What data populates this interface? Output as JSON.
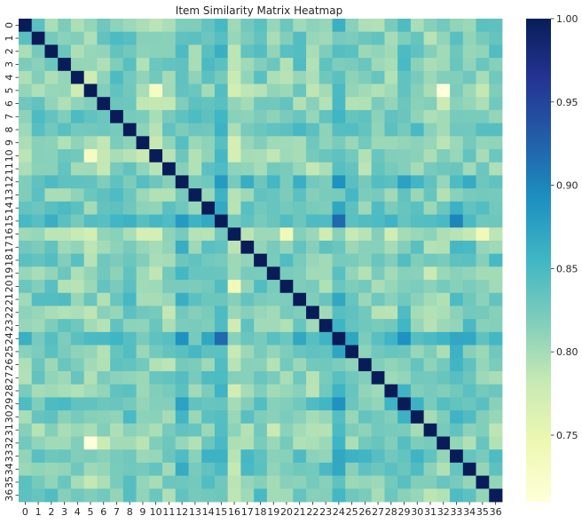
{
  "chart_data": {
    "type": "heatmap",
    "title": "Item Similarity Matrix Heatmap",
    "xlabel": "",
    "ylabel": "",
    "x_labels": [
      "0",
      "1",
      "2",
      "3",
      "4",
      "5",
      "6",
      "7",
      "8",
      "9",
      "10",
      "11",
      "12",
      "13",
      "14",
      "15",
      "16",
      "17",
      "18",
      "19",
      "20",
      "21",
      "22",
      "23",
      "24",
      "25",
      "26",
      "27",
      "28",
      "29",
      "30",
      "31",
      "32",
      "33",
      "34",
      "35",
      "36"
    ],
    "y_labels": [
      "0",
      "1",
      "2",
      "3",
      "4",
      "5",
      "6",
      "7",
      "8",
      "9",
      "10",
      "11",
      "12",
      "13",
      "14",
      "15",
      "16",
      "17",
      "18",
      "19",
      "20",
      "21",
      "22",
      "23",
      "24",
      "25",
      "26",
      "27",
      "28",
      "29",
      "30",
      "31",
      "32",
      "33",
      "34",
      "35",
      "36"
    ],
    "colorscale": "YlGnBu",
    "vmin": 0.71,
    "vmax": 1.0,
    "colorbar_ticks": [
      "0.75",
      "0.80",
      "0.85",
      "0.90",
      "0.95",
      "1.00"
    ],
    "diagonal_value": 1.0,
    "off_diagonal_range": [
      0.71,
      0.93
    ],
    "row_tendency": {
      "0": 0.815,
      "1": 0.83,
      "2": 0.82,
      "3": 0.815,
      "4": 0.81,
      "5": 0.79,
      "6": 0.805,
      "7": 0.835,
      "8": 0.83,
      "9": 0.805,
      "10": 0.8,
      "11": 0.81,
      "12": 0.855,
      "13": 0.825,
      "14": 0.835,
      "15": 0.865,
      "16": 0.775,
      "17": 0.825,
      "18": 0.83,
      "19": 0.81,
      "20": 0.815,
      "21": 0.83,
      "22": 0.805,
      "23": 0.815,
      "24": 0.865,
      "25": 0.83,
      "26": 0.815,
      "27": 0.815,
      "28": 0.815,
      "29": 0.85,
      "30": 0.83,
      "31": 0.8,
      "32": 0.8,
      "33": 0.85,
      "34": 0.835,
      "35": 0.825,
      "36": 0.825
    },
    "notable_cells": [
      {
        "row": 15,
        "col": 24,
        "value": 0.92
      },
      {
        "row": 24,
        "col": 15,
        "value": 0.92
      },
      {
        "row": 15,
        "col": 33,
        "value": 0.9
      },
      {
        "row": 12,
        "col": 24,
        "value": 0.89
      },
      {
        "row": 24,
        "col": 12,
        "value": 0.89
      },
      {
        "row": 24,
        "col": 29,
        "value": 0.89
      },
      {
        "row": 29,
        "col": 24,
        "value": 0.89
      },
      {
        "row": 5,
        "col": 32,
        "value": 0.71
      },
      {
        "row": 32,
        "col": 5,
        "value": 0.71
      },
      {
        "row": 5,
        "col": 10,
        "value": 0.73
      },
      {
        "row": 10,
        "col": 5,
        "value": 0.73
      },
      {
        "row": 16,
        "col": 20,
        "value": 0.74
      },
      {
        "row": 20,
        "col": 16,
        "value": 0.74
      },
      {
        "row": 16,
        "col": 35,
        "value": 0.74
      }
    ]
  }
}
